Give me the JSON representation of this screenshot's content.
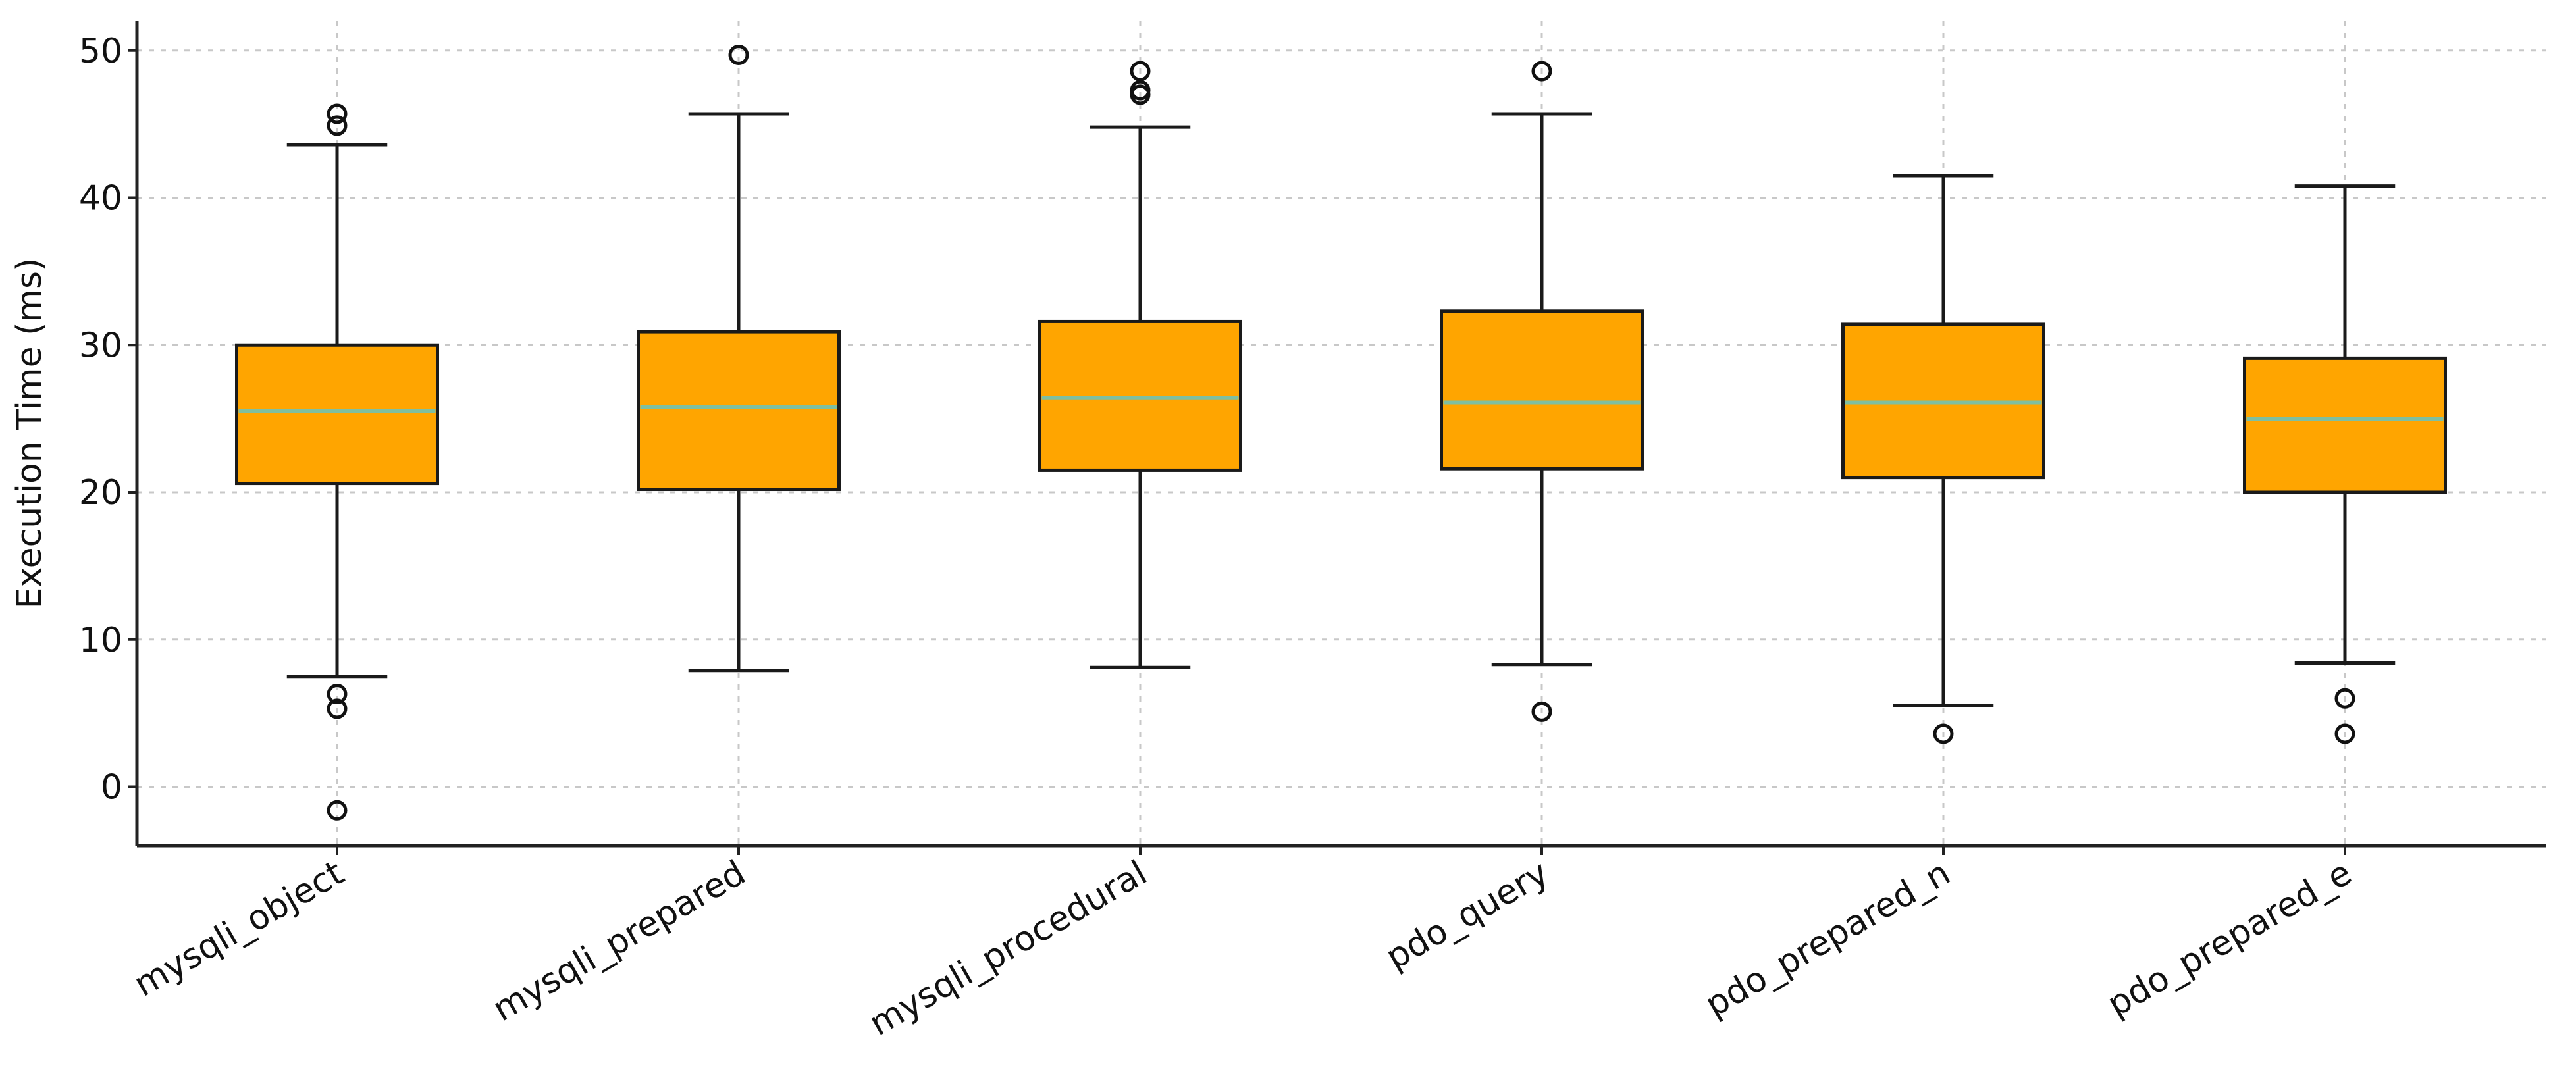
{
  "chart_data": {
    "type": "box",
    "title": "",
    "xlabel": "",
    "ylabel": "Execution Time (ms)",
    "ylim": [
      -4,
      52
    ],
    "yticks": [
      0,
      10,
      20,
      30,
      40,
      50
    ],
    "grid": true,
    "grid_style": "dotted",
    "categories": [
      "mysqli_object",
      "mysqli_prepared",
      "mysqli_procedural",
      "pdo_query",
      "pdo_prepared_n",
      "pdo_prepared_e"
    ],
    "series": [
      {
        "category": "mysqli_object",
        "whisker_low": 7.5,
        "q1": 20.6,
        "median": 25.5,
        "q3": 30.0,
        "whisker_high": 43.6,
        "outliers": [
          45.7,
          44.9,
          6.3,
          5.3,
          -1.6
        ]
      },
      {
        "category": "mysqli_prepared",
        "whisker_low": 7.9,
        "q1": 20.2,
        "median": 25.8,
        "q3": 30.9,
        "whisker_high": 45.7,
        "outliers": [
          49.7
        ]
      },
      {
        "category": "mysqli_procedural",
        "whisker_low": 8.1,
        "q1": 21.5,
        "median": 26.4,
        "q3": 31.6,
        "whisker_high": 44.8,
        "outliers": [
          48.6,
          47.3,
          47.0
        ]
      },
      {
        "category": "pdo_query",
        "whisker_low": 8.3,
        "q1": 21.6,
        "median": 26.1,
        "q3": 32.3,
        "whisker_high": 45.7,
        "outliers": [
          48.6,
          5.1
        ]
      },
      {
        "category": "pdo_prepared_n",
        "whisker_low": 5.5,
        "q1": 21.0,
        "median": 26.1,
        "q3": 31.4,
        "whisker_high": 41.5,
        "outliers": [
          3.6
        ]
      },
      {
        "category": "pdo_prepared_e",
        "whisker_low": 8.4,
        "q1": 20.0,
        "median": 25.0,
        "q3": 29.1,
        "whisker_high": 40.8,
        "outliers": [
          6.0,
          3.6
        ]
      }
    ],
    "colors": {
      "box_fill": "#FFA500",
      "box_edge": "#1a1a1a",
      "median_line": "#7FBFA0",
      "whisker": "#1a1a1a",
      "outlier_edge": "#111111",
      "grid": "#c8c8c8",
      "axis": "#222222"
    }
  }
}
